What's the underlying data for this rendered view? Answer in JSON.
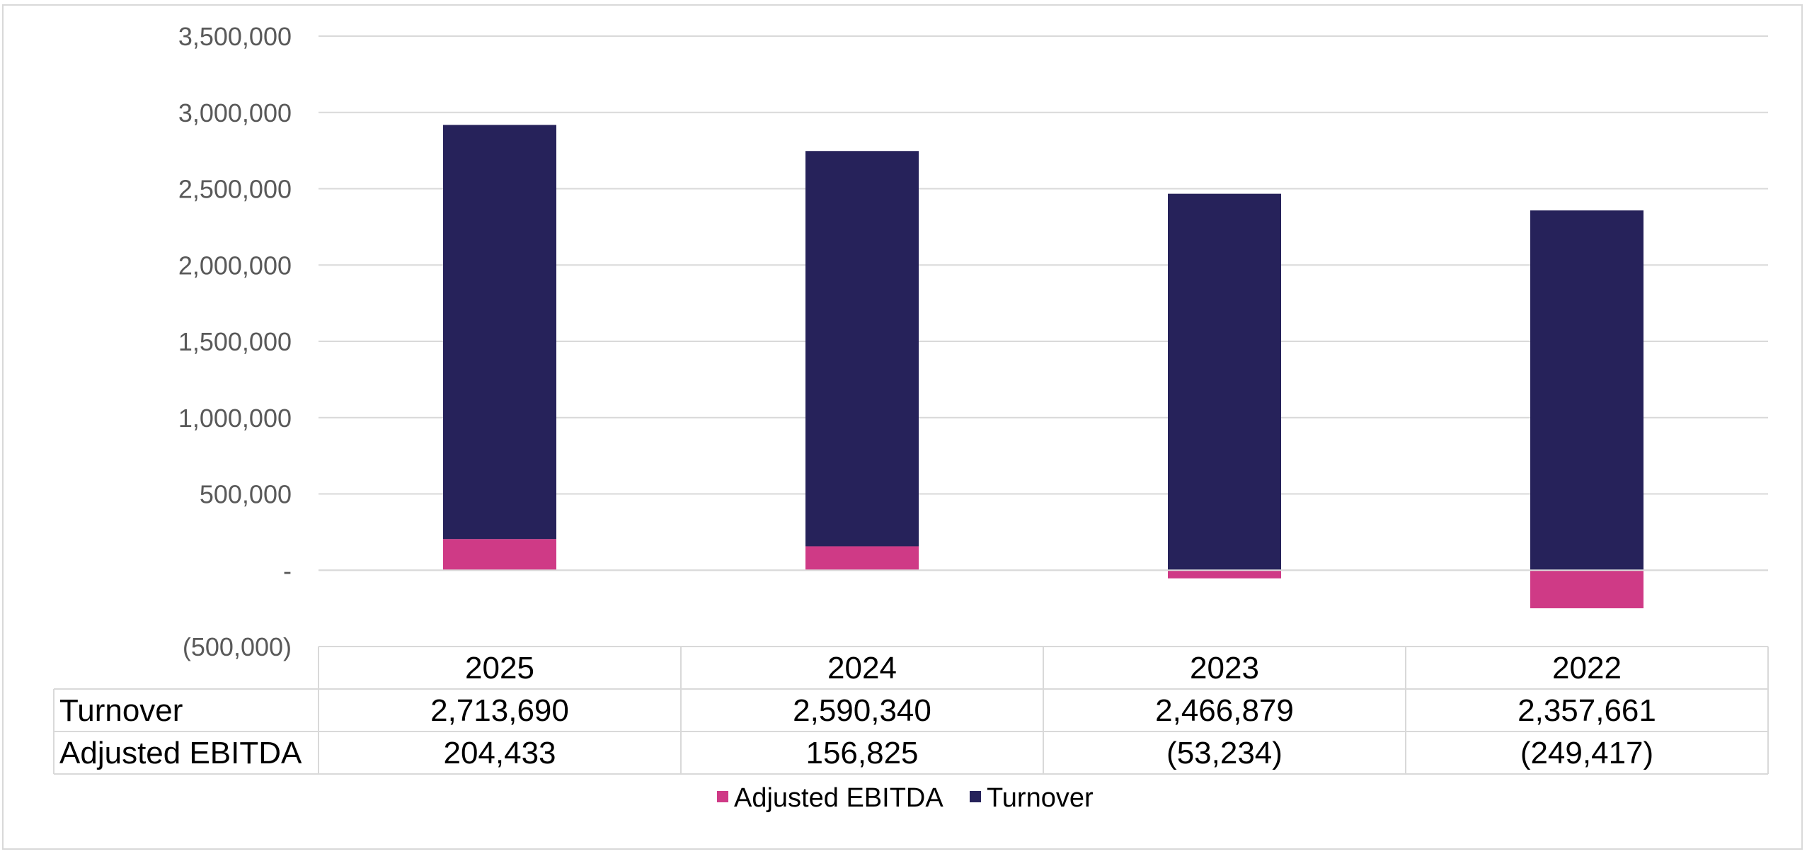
{
  "chart_data": {
    "type": "bar",
    "stacked": true,
    "categories": [
      "2025",
      "2024",
      "2023",
      "2022"
    ],
    "series": [
      {
        "name": "Adjusted EBITDA",
        "values": [
          204433,
          156825,
          -53234,
          -249417
        ],
        "color": "#cf3a86",
        "labels": [
          "204,433",
          "156,825",
          "(53,234)",
          "(249,417)"
        ]
      },
      {
        "name": "Turnover",
        "values": [
          2713690,
          2590340,
          2466879,
          2357661
        ],
        "color": "#26225a",
        "labels": [
          "2,713,690",
          "2,590,340",
          "2,466,879",
          "2,357,661"
        ]
      }
    ],
    "table_row_order": [
      "Turnover",
      "Adjusted EBITDA"
    ],
    "ylim": [
      -500000,
      3500000
    ],
    "yticks": [
      3500000,
      3000000,
      2500000,
      2000000,
      1500000,
      1000000,
      500000,
      0,
      -500000
    ],
    "ytick_labels": [
      "3,500,000",
      "3,000,000",
      "2,500,000",
      "2,000,000",
      "1,500,000",
      "1,000,000",
      "500,000",
      "-",
      "(500,000)"
    ],
    "grid": true,
    "data_table": true,
    "legend_position": "bottom",
    "legend": [
      "Adjusted EBITDA",
      "Turnover"
    ]
  }
}
